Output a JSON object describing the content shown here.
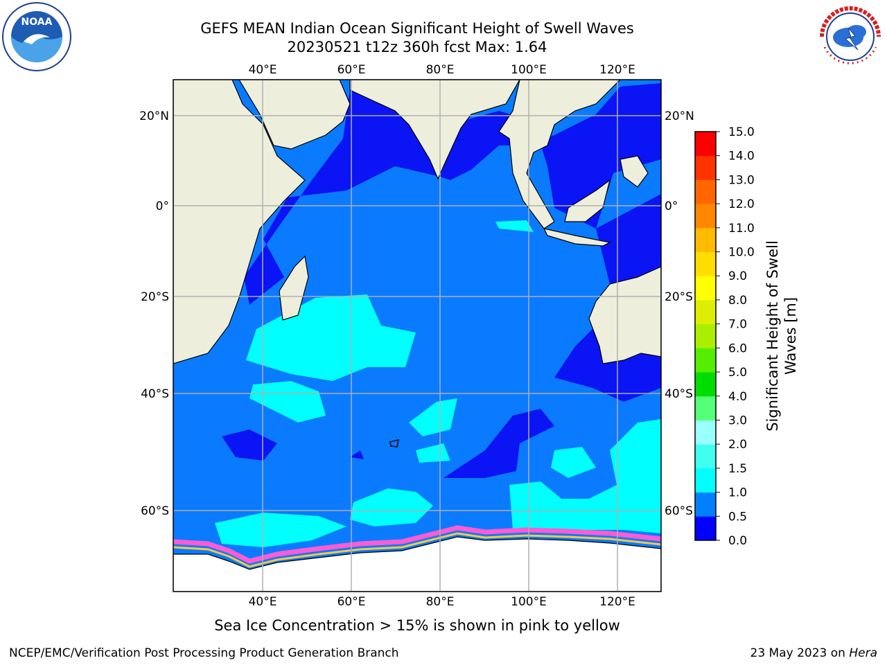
{
  "title": {
    "line1": "GEFS MEAN Indian Ocean Significant Height of Swell Waves",
    "line2": "20230521 t12z 360h fcst   Max: 1.64"
  },
  "logos": {
    "left": "noaa-logo",
    "right": "nws-logo",
    "left_text": "NOAA",
    "right_text": "NATIONAL WEATHER SERVICE"
  },
  "map": {
    "lon_labels": [
      "40°E",
      "60°E",
      "80°E",
      "100°E",
      "120°E"
    ],
    "lat_labels": [
      "20°N",
      "0°",
      "20°S",
      "40°S",
      "60°S"
    ],
    "colors": {
      "land": "#eeeedd",
      "ocean_mid": "#0a7bff",
      "ocean_low": "#0a14f5",
      "swell_high": "#00ffff",
      "ice_pink": "#ff5bd2",
      "ice_yellow": "#ffc83c"
    }
  },
  "colorbar": {
    "label": "Significant Height of Swell\nWaves [m]",
    "ticks": [
      "0.0",
      "0.5",
      "1.0",
      "1.5",
      "2.0",
      "3.0",
      "4.0",
      "5.0",
      "6.0",
      "7.0",
      "8.0",
      "9.0",
      "10.0",
      "11.0",
      "12.0",
      "13.0",
      "14.0",
      "15.0"
    ],
    "colors": [
      "#0000ff",
      "#0080ff",
      "#00ffff",
      "#40ffee",
      "#99ffff",
      "#55ff77",
      "#00dd00",
      "#55ee00",
      "#aaee00",
      "#ddee00",
      "#ffff00",
      "#ffdd00",
      "#ffbb00",
      "#ff8800",
      "#ff6600",
      "#ff3300",
      "#ff0000"
    ]
  },
  "caption": "Sea Ice Concentration > 15% is shown in pink to yellow",
  "footer": {
    "left": "NCEP/EMC/Verification Post Processing Product Generation Branch",
    "right_prefix": "23 May 2023 on ",
    "right_host": "Hera"
  }
}
